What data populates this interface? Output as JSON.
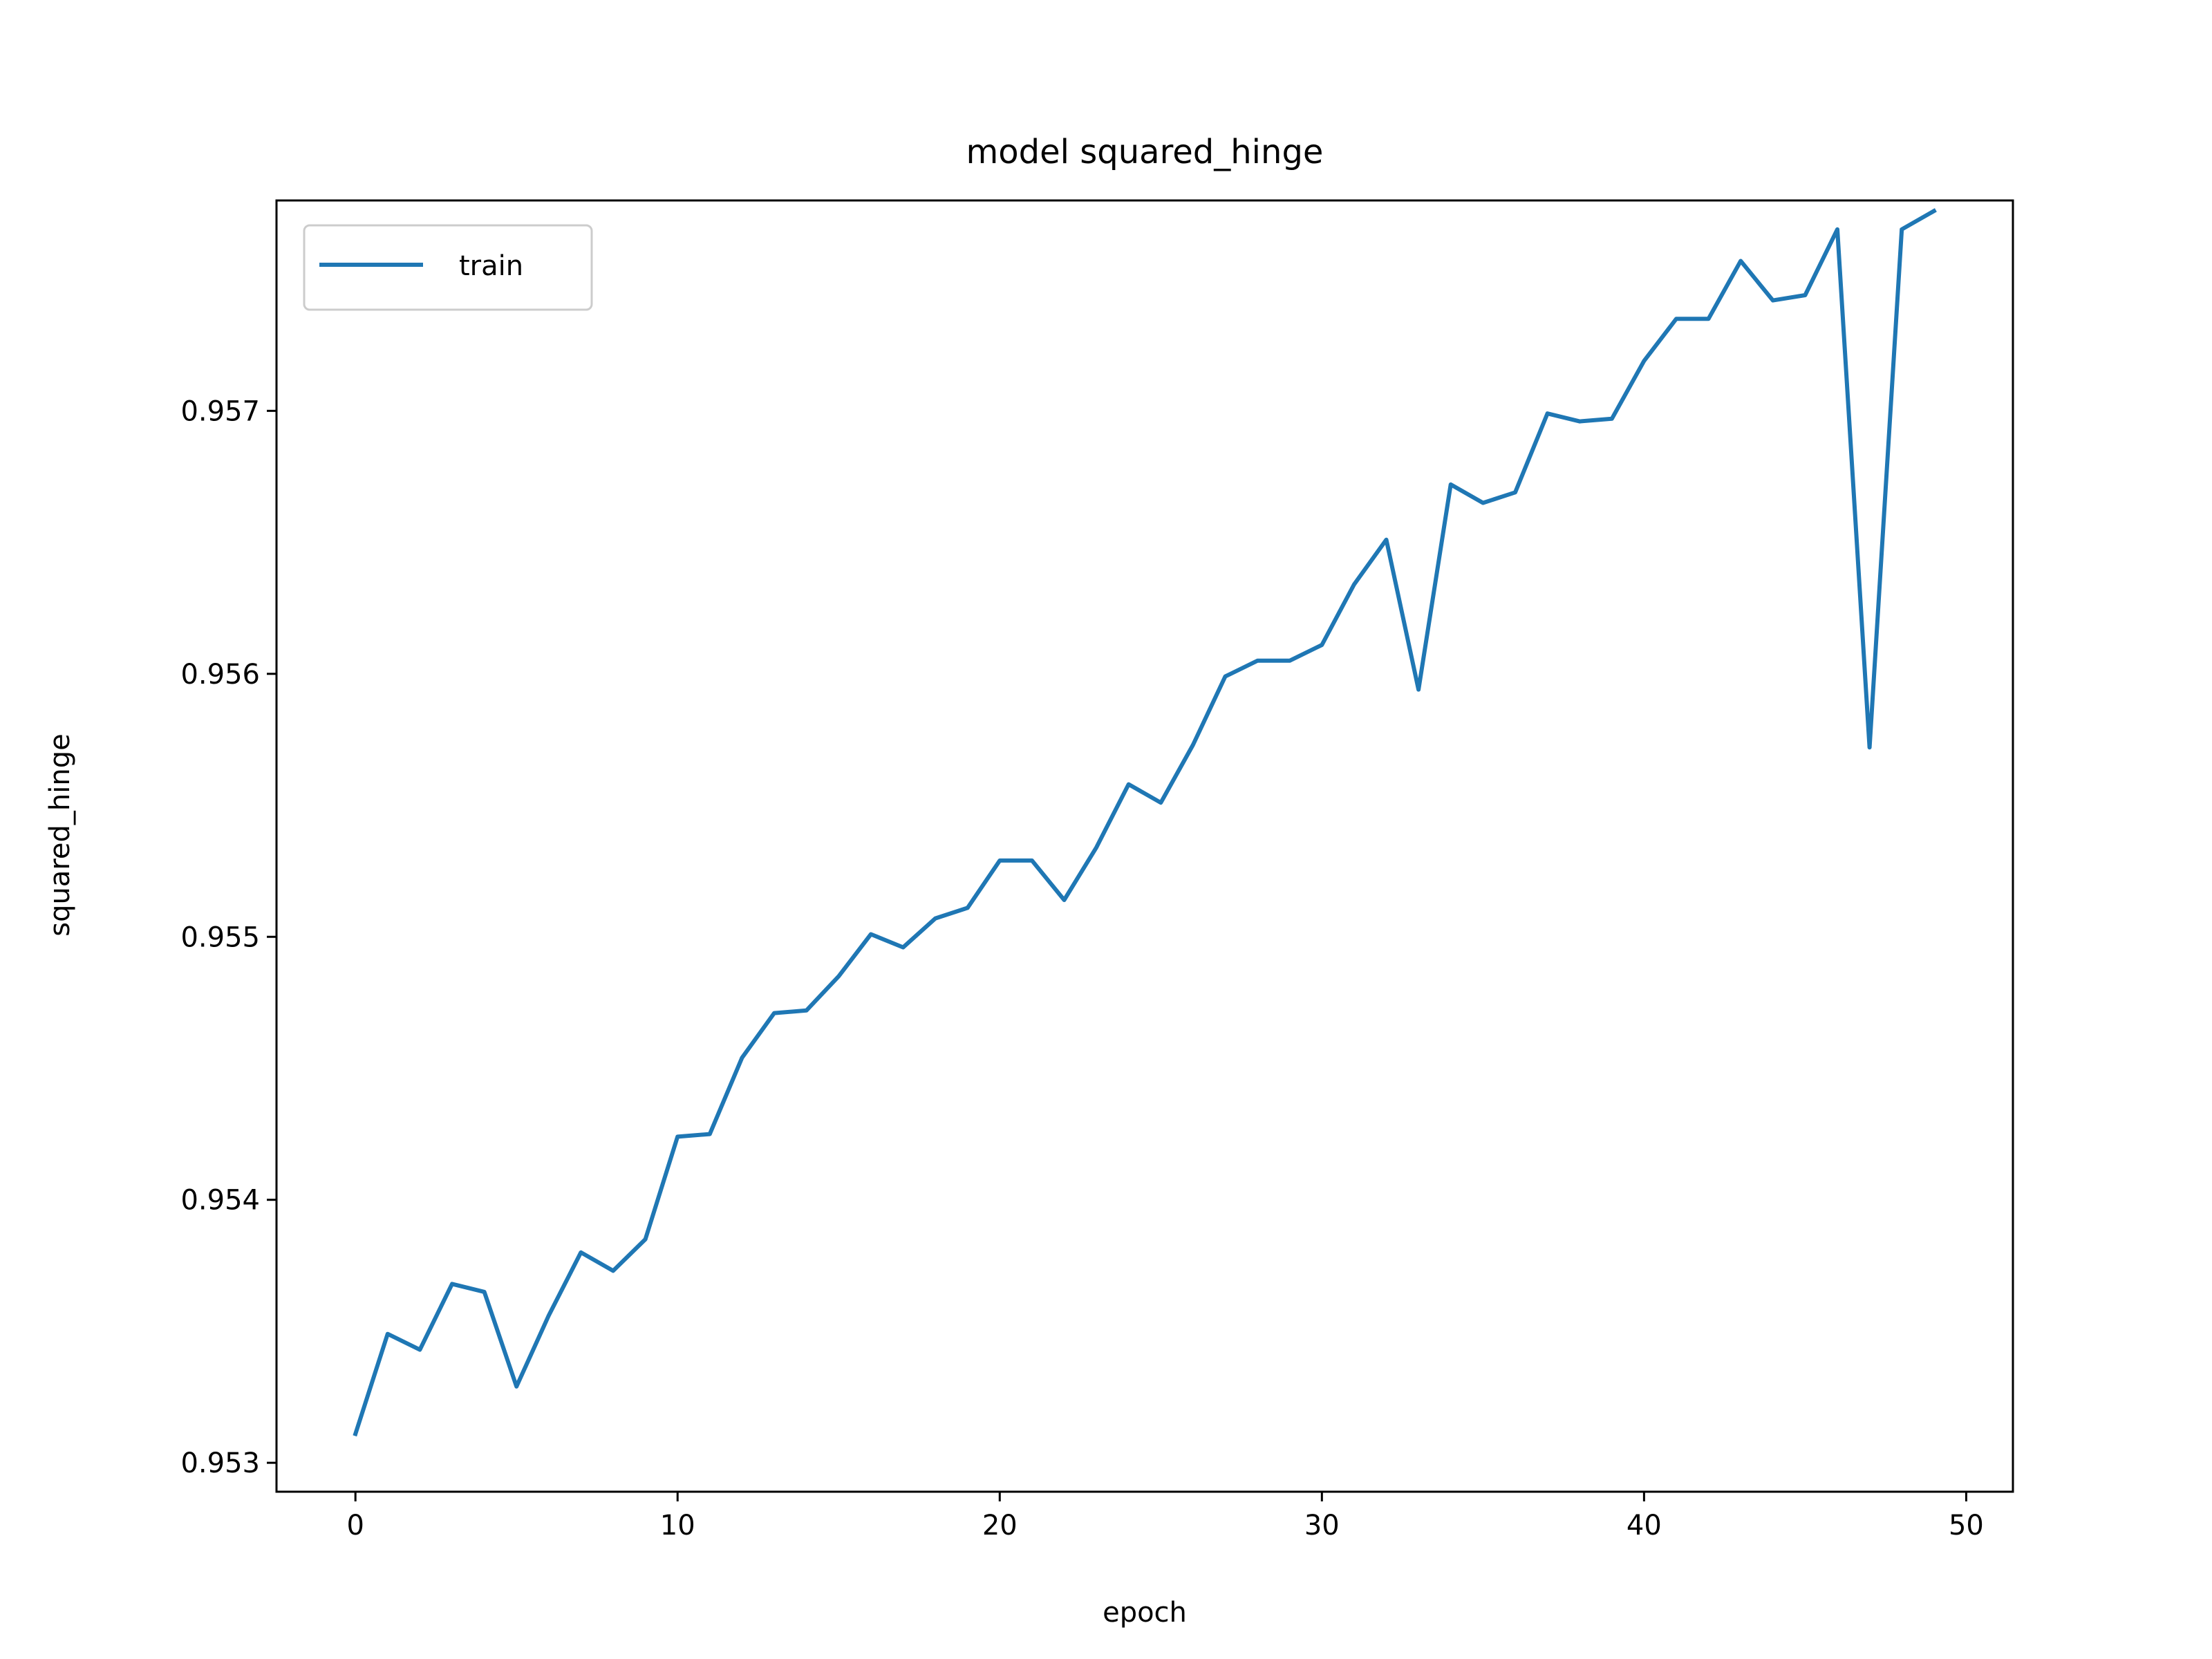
{
  "chart_data": {
    "type": "line",
    "title": "model squared_hinge",
    "xlabel": "epoch",
    "ylabel": "squared_hinge",
    "xlim": [
      -2.45,
      51.45
    ],
    "ylim": [
      952.89,
      957.8
    ],
    "y_scale_note": "values in thousandths",
    "xticks": [
      0,
      10,
      20,
      30,
      40,
      50
    ],
    "xtick_labels": [
      "0",
      "10",
      "20",
      "30",
      "40",
      "50"
    ],
    "yticks": [
      953,
      954,
      955,
      956,
      957
    ],
    "ytick_labels": [
      "0.953",
      "0.954",
      "0.955",
      "0.956",
      "0.957"
    ],
    "grid": false,
    "legend_position": "top-left",
    "series": [
      {
        "name": "train",
        "color": "#1f77b4",
        "x": [
          0,
          1,
          2,
          3,
          4,
          5,
          6,
          7,
          8,
          9,
          10,
          11,
          12,
          13,
          14,
          15,
          16,
          17,
          18,
          19,
          20,
          21,
          22,
          23,
          24,
          25,
          26,
          27,
          28,
          29,
          30,
          31,
          32,
          33,
          34,
          35,
          36,
          37,
          38,
          39,
          40,
          41,
          42,
          43,
          44,
          45,
          46,
          47,
          48,
          49
        ],
        "values": [
          953.11,
          953.49,
          953.43,
          953.68,
          953.65,
          953.29,
          953.56,
          953.8,
          953.73,
          953.85,
          954.24,
          954.25,
          954.54,
          954.71,
          954.72,
          954.85,
          955.01,
          954.96,
          955.07,
          955.11,
          955.29,
          955.29,
          955.14,
          955.34,
          955.58,
          955.51,
          955.73,
          955.99,
          956.05,
          956.05,
          956.11,
          956.34,
          956.51,
          955.94,
          956.72,
          956.65,
          956.69,
          956.99,
          956.96,
          956.97,
          957.19,
          957.35,
          957.35,
          957.57,
          957.42,
          957.44,
          957.69,
          955.72,
          957.69,
          957.76
        ]
      }
    ]
  }
}
